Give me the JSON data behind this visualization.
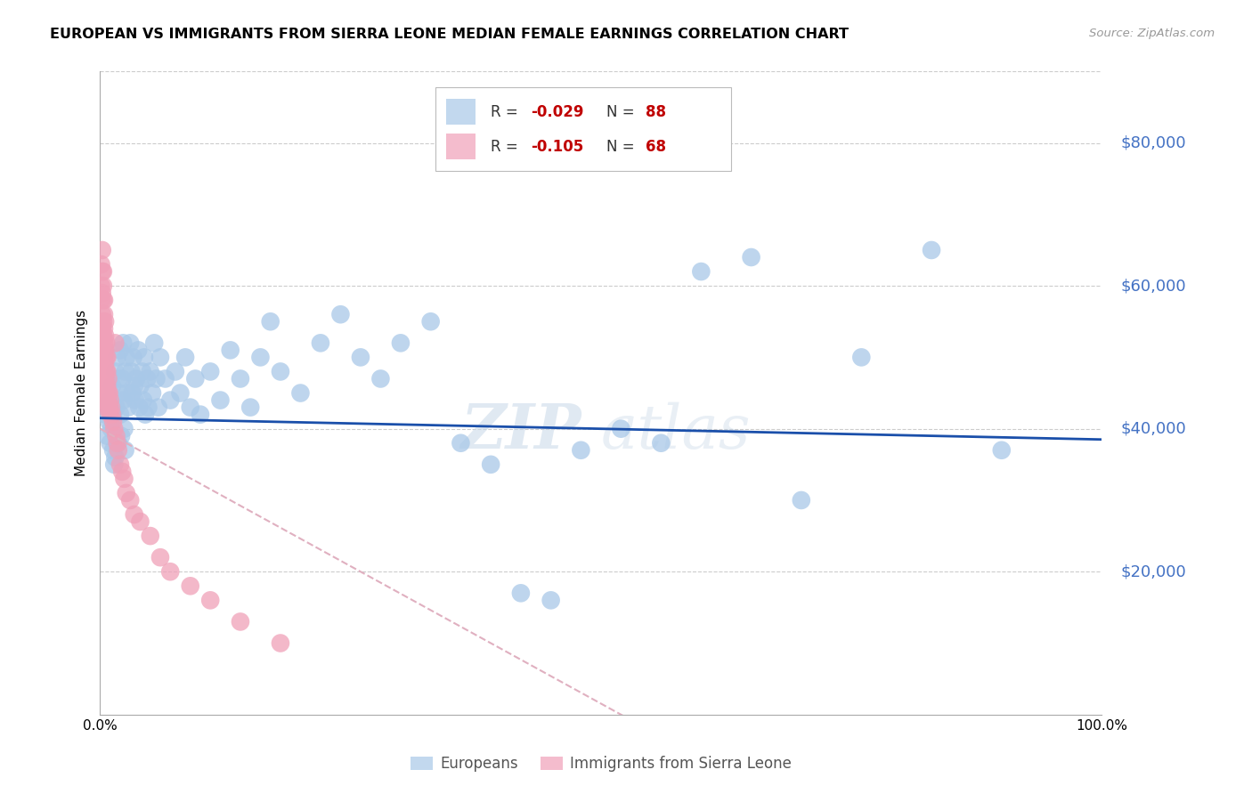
{
  "title": "EUROPEAN VS IMMIGRANTS FROM SIERRA LEONE MEDIAN FEMALE EARNINGS CORRELATION CHART",
  "source": "Source: ZipAtlas.com",
  "ylabel": "Median Female Earnings",
  "ytick_labels": [
    "$20,000",
    "$40,000",
    "$60,000",
    "$80,000"
  ],
  "ytick_values": [
    20000,
    40000,
    60000,
    80000
  ],
  "ymin": 0,
  "ymax": 90000,
  "xmin": 0.0,
  "xmax": 1.0,
  "r_european": -0.029,
  "n_european": 88,
  "r_sierra_leone": -0.105,
  "n_sierra_leone": 68,
  "color_european": "#a8c8e8",
  "color_sierra_leone": "#f0a0b8",
  "trendline_european_color": "#1a4faa",
  "trendline_sierra_leone_color": "#e0b0c0",
  "watermark_zip": "ZIP",
  "watermark_atlas": "atlas",
  "background_color": "#ffffff",
  "european_x": [
    0.005,
    0.007,
    0.008,
    0.009,
    0.01,
    0.01,
    0.011,
    0.012,
    0.013,
    0.013,
    0.014,
    0.015,
    0.015,
    0.016,
    0.017,
    0.018,
    0.018,
    0.019,
    0.02,
    0.02,
    0.021,
    0.022,
    0.023,
    0.023,
    0.024,
    0.025,
    0.025,
    0.026,
    0.027,
    0.028,
    0.03,
    0.031,
    0.032,
    0.033,
    0.034,
    0.035,
    0.036,
    0.038,
    0.039,
    0.04,
    0.042,
    0.043,
    0.044,
    0.045,
    0.047,
    0.048,
    0.05,
    0.052,
    0.054,
    0.056,
    0.058,
    0.06,
    0.065,
    0.07,
    0.075,
    0.08,
    0.085,
    0.09,
    0.095,
    0.1,
    0.11,
    0.12,
    0.13,
    0.14,
    0.15,
    0.16,
    0.17,
    0.18,
    0.2,
    0.22,
    0.24,
    0.26,
    0.28,
    0.3,
    0.33,
    0.36,
    0.39,
    0.42,
    0.45,
    0.48,
    0.52,
    0.56,
    0.6,
    0.65,
    0.7,
    0.76,
    0.83,
    0.9
  ],
  "european_y": [
    42000,
    39000,
    43000,
    41000,
    44000,
    38000,
    40000,
    46000,
    37000,
    42000,
    35000,
    48000,
    36000,
    43000,
    50000,
    47000,
    38000,
    45000,
    51000,
    42000,
    39000,
    47000,
    44000,
    52000,
    40000,
    48000,
    37000,
    50000,
    45000,
    43000,
    52000,
    48000,
    45000,
    50000,
    46000,
    44000,
    47000,
    51000,
    43000,
    46000,
    48000,
    44000,
    50000,
    42000,
    47000,
    43000,
    48000,
    45000,
    52000,
    47000,
    43000,
    50000,
    47000,
    44000,
    48000,
    45000,
    50000,
    43000,
    47000,
    42000,
    48000,
    44000,
    51000,
    47000,
    43000,
    50000,
    55000,
    48000,
    45000,
    52000,
    56000,
    50000,
    47000,
    52000,
    55000,
    38000,
    35000,
    17000,
    16000,
    37000,
    40000,
    38000,
    62000,
    64000,
    30000,
    50000,
    65000,
    37000
  ],
  "sierra_leone_x": [
    0.001,
    0.001,
    0.001,
    0.002,
    0.002,
    0.002,
    0.002,
    0.002,
    0.002,
    0.003,
    0.003,
    0.003,
    0.003,
    0.003,
    0.003,
    0.003,
    0.004,
    0.004,
    0.004,
    0.004,
    0.004,
    0.004,
    0.004,
    0.005,
    0.005,
    0.005,
    0.005,
    0.005,
    0.005,
    0.005,
    0.006,
    0.006,
    0.006,
    0.006,
    0.006,
    0.007,
    0.007,
    0.007,
    0.007,
    0.008,
    0.008,
    0.008,
    0.009,
    0.009,
    0.01,
    0.01,
    0.011,
    0.012,
    0.013,
    0.014,
    0.015,
    0.016,
    0.017,
    0.018,
    0.02,
    0.022,
    0.024,
    0.026,
    0.03,
    0.034,
    0.04,
    0.05,
    0.06,
    0.07,
    0.09,
    0.11,
    0.14,
    0.18
  ],
  "sierra_leone_y": [
    63000,
    60000,
    58000,
    65000,
    62000,
    59000,
    56000,
    54000,
    52000,
    62000,
    60000,
    58000,
    55000,
    53000,
    51000,
    49000,
    58000,
    56000,
    54000,
    52000,
    50000,
    48000,
    46000,
    55000,
    53000,
    51000,
    49000,
    47000,
    45000,
    43000,
    52000,
    50000,
    48000,
    46000,
    44000,
    50000,
    48000,
    46000,
    44000,
    47000,
    45000,
    43000,
    45000,
    43000,
    44000,
    42000,
    43000,
    42000,
    41000,
    40000,
    52000,
    39000,
    38000,
    37000,
    35000,
    34000,
    33000,
    31000,
    30000,
    28000,
    27000,
    25000,
    22000,
    20000,
    18000,
    16000,
    13000,
    10000
  ]
}
